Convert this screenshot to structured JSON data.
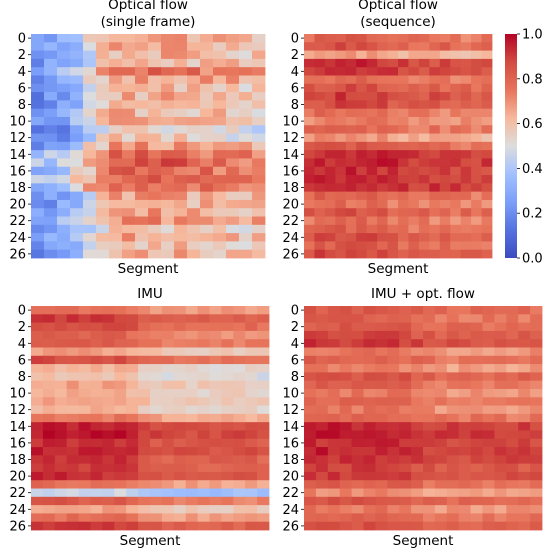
{
  "chart_data": [
    {
      "type": "heatmap",
      "title_lines": [
        "Optical flow",
        "(single frame)"
      ],
      "xlabel": "Segment",
      "ylabel": "",
      "ytick_labels": [
        "0",
        "2",
        "4",
        "6",
        "8",
        "10",
        "12",
        "14",
        "16",
        "18",
        "20",
        "22",
        "24",
        "26"
      ],
      "num_rows": 27,
      "num_cols": 18,
      "row_profile": [
        0.62,
        0.6,
        0.57,
        0.58,
        0.7,
        0.62,
        0.55,
        0.57,
        0.55,
        0.57,
        0.58,
        0.48,
        0.52,
        0.62,
        0.73,
        0.76,
        0.72,
        0.76,
        0.74,
        0.6,
        0.58,
        0.6,
        0.64,
        0.52,
        0.62,
        0.55,
        0.58
      ],
      "col_offsets": [
        -0.38,
        -0.34,
        -0.3,
        -0.22,
        -0.1,
        0.0,
        0.05,
        0.06,
        0.06,
        0.07,
        0.06,
        0.05,
        0.04,
        0.04,
        0.03,
        0.02,
        0.0,
        0.0
      ],
      "noise": 0.09,
      "vlim": [
        0.0,
        1.0
      ]
    },
    {
      "type": "heatmap",
      "title_lines": [
        "Optical flow",
        "(sequence)"
      ],
      "xlabel": "Segment",
      "ylabel": "",
      "ytick_labels": [
        "0",
        "2",
        "4",
        "6",
        "8",
        "10",
        "12",
        "14",
        "16",
        "18",
        "20",
        "22",
        "24",
        "26"
      ],
      "num_rows": 27,
      "num_cols": 18,
      "row_profile": [
        0.78,
        0.82,
        0.65,
        0.9,
        0.9,
        0.77,
        0.82,
        0.88,
        0.84,
        0.75,
        0.72,
        0.78,
        0.68,
        0.8,
        0.92,
        0.93,
        0.9,
        0.92,
        0.93,
        0.78,
        0.74,
        0.82,
        0.76,
        0.78,
        0.84,
        0.8,
        0.86
      ],
      "col_offsets": [
        0.0,
        0.02,
        0.02,
        0.03,
        0.03,
        0.03,
        0.02,
        0.02,
        0.0,
        -0.02,
        -0.03,
        -0.03,
        -0.03,
        -0.03,
        -0.04,
        -0.04,
        -0.04,
        -0.04
      ],
      "noise": 0.05,
      "vlim": [
        0.0,
        1.0
      ],
      "colorbar": {
        "ticks": [
          "0.0",
          "0.2",
          "0.4",
          "0.6",
          "0.8",
          "1.0"
        ]
      }
    },
    {
      "type": "heatmap",
      "title_lines": [
        "IMU"
      ],
      "xlabel": "Segment",
      "ylabel": "",
      "ytick_labels": [
        "0",
        "2",
        "4",
        "6",
        "8",
        "10",
        "12",
        "14",
        "16",
        "18",
        "20",
        "22",
        "24",
        "26"
      ],
      "num_rows": 27,
      "num_cols": 20,
      "row_profile": [
        0.72,
        0.86,
        0.82,
        0.75,
        0.78,
        0.62,
        0.82,
        0.58,
        0.55,
        0.62,
        0.6,
        0.62,
        0.58,
        0.7,
        0.9,
        0.92,
        0.88,
        0.9,
        0.86,
        0.85,
        0.88,
        0.72,
        0.42,
        0.78,
        0.62,
        0.72,
        0.86
      ],
      "col_offsets": [
        0.05,
        0.05,
        0.05,
        0.05,
        0.05,
        0.05,
        0.05,
        0.05,
        0.03,
        -0.02,
        -0.04,
        -0.05,
        -0.05,
        -0.05,
        -0.05,
        -0.05,
        -0.05,
        -0.05,
        -0.05,
        -0.06
      ],
      "noise": 0.035,
      "vlim": [
        0.0,
        1.0
      ]
    },
    {
      "type": "heatmap",
      "title_lines": [
        "IMU + opt. flow"
      ],
      "xlabel": "Segment",
      "ylabel": "",
      "ytick_labels": [
        "0",
        "2",
        "4",
        "6",
        "8",
        "10",
        "12",
        "14",
        "16",
        "18",
        "20",
        "22",
        "24",
        "26"
      ],
      "num_rows": 27,
      "num_cols": 20,
      "row_profile": [
        0.8,
        0.78,
        0.8,
        0.84,
        0.88,
        0.72,
        0.78,
        0.7,
        0.82,
        0.78,
        0.72,
        0.76,
        0.72,
        0.78,
        0.92,
        0.93,
        0.9,
        0.92,
        0.9,
        0.86,
        0.88,
        0.78,
        0.68,
        0.82,
        0.72,
        0.78,
        0.82
      ],
      "col_offsets": [
        0.03,
        0.03,
        0.03,
        0.03,
        0.03,
        0.03,
        0.03,
        0.03,
        0.02,
        0.0,
        -0.02,
        -0.03,
        -0.03,
        -0.03,
        -0.03,
        -0.03,
        -0.03,
        -0.03,
        -0.03,
        -0.03
      ],
      "noise": 0.04,
      "vlim": [
        0.0,
        1.0
      ]
    }
  ],
  "colorbar": {
    "ticks": [
      "0.0",
      "0.2",
      "0.4",
      "0.6",
      "0.8",
      "1.0"
    ],
    "colormap": "coolwarm",
    "low_color": "#3b4cc0",
    "mid_color": "#dddddd",
    "high_color": "#b40426"
  }
}
